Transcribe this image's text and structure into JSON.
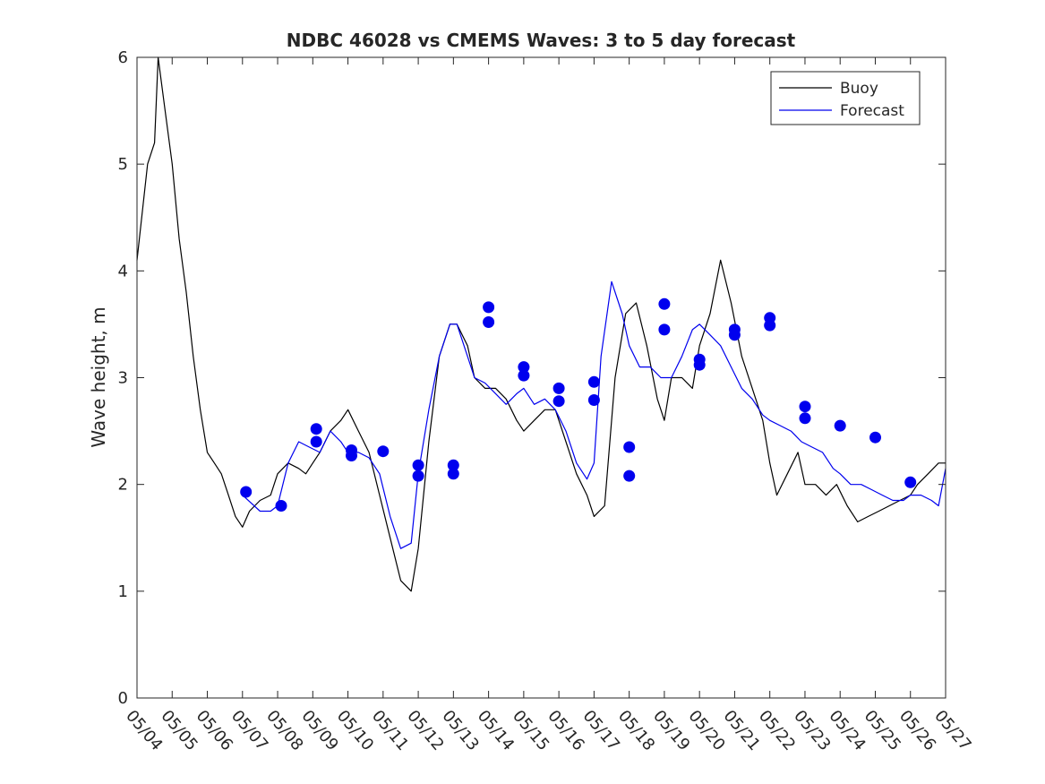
{
  "chart_data": {
    "type": "line",
    "title": "NDBC 46028 vs CMEMS Waves: 3 to 5 day forecast",
    "xlabel": "",
    "ylabel": "Wave height, m",
    "ylim": [
      0,
      6
    ],
    "yticks": [
      0,
      1,
      2,
      3,
      4,
      5,
      6
    ],
    "xlim_days": [
      0,
      23
    ],
    "xtick_labels": [
      "05/04",
      "05/05",
      "05/06",
      "05/07",
      "05/08",
      "05/09",
      "05/10",
      "05/11",
      "05/12",
      "05/13",
      "05/14",
      "05/15",
      "05/16",
      "05/17",
      "05/18",
      "05/19",
      "05/20",
      "05/21",
      "05/22",
      "05/23",
      "05/24",
      "05/25",
      "05/26",
      "05/27"
    ],
    "grid": false,
    "legend_position": "top-right",
    "colors": {
      "buoy": "#000000",
      "forecast": "#0000ee"
    },
    "series": [
      {
        "name": "Buoy",
        "kind": "observed",
        "x": [
          0,
          0.3,
          0.5,
          0.6,
          0.8,
          1.0,
          1.2,
          1.4,
          1.6,
          1.8,
          2.0,
          2.2,
          2.4,
          2.6,
          2.8,
          3.0,
          3.2,
          3.5,
          3.8,
          4.0,
          4.3,
          4.6,
          4.8,
          5.0,
          5.2,
          5.5,
          5.8,
          6.0,
          6.3,
          6.6,
          6.9,
          7.2,
          7.5,
          7.8,
          8.0,
          8.3,
          8.6,
          8.9,
          9.1,
          9.4,
          9.6,
          9.9,
          10.2,
          10.5,
          10.8,
          11.0,
          11.3,
          11.6,
          11.9,
          12.2,
          12.5,
          12.8,
          13.0,
          13.3,
          13.6,
          13.9,
          14.2,
          14.5,
          14.8,
          15.0,
          15.2,
          15.5,
          15.8,
          16.0,
          16.3,
          16.6,
          16.9,
          17.2,
          17.5,
          17.8,
          18.0,
          18.2,
          18.5,
          18.8,
          19.0,
          19.3,
          19.6,
          19.9,
          20.2,
          20.5,
          20.8,
          21.1,
          21.4,
          21.7,
          22.0,
          22.2,
          22.5,
          22.8,
          23.0
        ],
        "y": [
          4.1,
          5.0,
          5.2,
          6.0,
          5.5,
          5.0,
          4.3,
          3.8,
          3.2,
          2.7,
          2.3,
          2.2,
          2.1,
          1.9,
          1.7,
          1.6,
          1.75,
          1.85,
          1.9,
          2.1,
          2.2,
          2.15,
          2.1,
          2.2,
          2.3,
          2.5,
          2.6,
          2.7,
          2.5,
          2.3,
          1.9,
          1.5,
          1.1,
          1.0,
          1.4,
          2.4,
          3.2,
          3.5,
          3.5,
          3.3,
          3.0,
          2.9,
          2.9,
          2.8,
          2.6,
          2.5,
          2.6,
          2.7,
          2.7,
          2.4,
          2.1,
          1.9,
          1.7,
          1.8,
          3.0,
          3.6,
          3.7,
          3.3,
          2.8,
          2.6,
          3.0,
          3.0,
          2.9,
          3.3,
          3.6,
          4.1,
          3.7,
          3.2,
          2.9,
          2.6,
          2.2,
          1.9,
          2.1,
          2.3,
          2.0,
          2.0,
          1.9,
          2.0,
          1.8,
          1.65,
          1.7,
          1.75,
          1.8,
          1.85,
          1.9,
          2.0,
          2.1,
          2.2,
          2.2
        ]
      },
      {
        "name": "Forecast",
        "kind": "model",
        "x": [
          3.0,
          3.5,
          3.8,
          4.0,
          4.3,
          4.6,
          4.9,
          5.2,
          5.5,
          5.8,
          6.0,
          6.3,
          6.6,
          6.9,
          7.2,
          7.5,
          7.8,
          8.0,
          8.3,
          8.6,
          8.9,
          9.1,
          9.4,
          9.6,
          9.9,
          10.2,
          10.5,
          10.8,
          11.0,
          11.3,
          11.6,
          11.9,
          12.2,
          12.5,
          12.8,
          13.0,
          13.2,
          13.5,
          13.8,
          14.0,
          14.3,
          14.6,
          14.9,
          15.2,
          15.5,
          15.8,
          16.0,
          16.3,
          16.6,
          16.9,
          17.2,
          17.5,
          17.8,
          18.0,
          18.3,
          18.6,
          18.9,
          19.2,
          19.5,
          19.8,
          20.0,
          20.3,
          20.6,
          20.9,
          21.2,
          21.5,
          21.8,
          22.0,
          22.3,
          22.6,
          22.8,
          23.0
        ],
        "y": [
          1.9,
          1.75,
          1.75,
          1.8,
          2.2,
          2.4,
          2.35,
          2.3,
          2.5,
          2.4,
          2.3,
          2.3,
          2.25,
          2.1,
          1.7,
          1.4,
          1.45,
          2.1,
          2.7,
          3.2,
          3.5,
          3.5,
          3.2,
          3.0,
          2.95,
          2.85,
          2.75,
          2.85,
          2.9,
          2.75,
          2.8,
          2.7,
          2.5,
          2.2,
          2.05,
          2.2,
          3.2,
          3.9,
          3.6,
          3.3,
          3.1,
          3.1,
          3.0,
          3.0,
          3.2,
          3.45,
          3.5,
          3.4,
          3.3,
          3.1,
          2.9,
          2.8,
          2.65,
          2.6,
          2.55,
          2.5,
          2.4,
          2.35,
          2.3,
          2.15,
          2.1,
          2.0,
          2.0,
          1.95,
          1.9,
          1.85,
          1.85,
          1.9,
          1.9,
          1.85,
          1.8,
          2.15
        ]
      }
    ],
    "forecast_markers": {
      "x": [
        3.1,
        4.1,
        5.1,
        5.1,
        6.1,
        6.1,
        7.0,
        8.0,
        8.0,
        9.0,
        9.0,
        10.0,
        10.0,
        11.0,
        11.0,
        12.0,
        12.0,
        13.0,
        13.0,
        14.0,
        14.0,
        15.0,
        15.0,
        16.0,
        16.0,
        17.0,
        17.0,
        18.0,
        18.0,
        19.0,
        19.0,
        20.0,
        21.0,
        22.0
      ],
      "y": [
        1.93,
        1.8,
        2.4,
        2.52,
        2.27,
        2.32,
        2.31,
        2.08,
        2.18,
        2.1,
        2.18,
        3.52,
        3.66,
        3.02,
        3.1,
        2.78,
        2.9,
        2.79,
        2.96,
        2.08,
        2.35,
        3.45,
        3.69,
        3.12,
        3.17,
        3.4,
        3.45,
        3.49,
        3.56,
        2.62,
        2.73,
        2.55,
        2.44,
        2.02
      ]
    }
  }
}
